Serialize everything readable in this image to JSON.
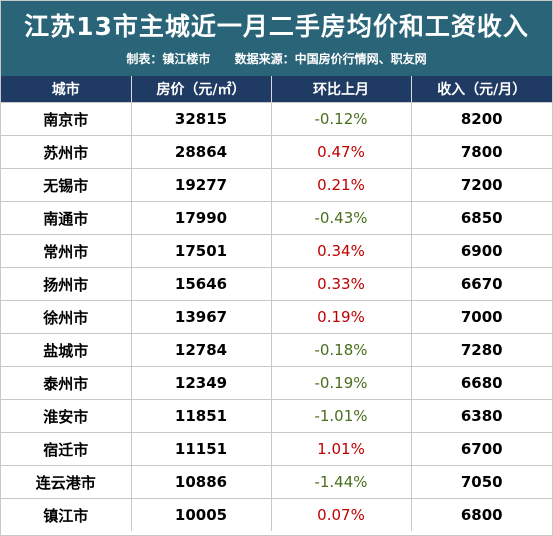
{
  "header": {
    "title": "江苏13市主城近一月二手房均价和工资收入",
    "maker": "制表：镇江楼市",
    "source": "数据来源：中国房价行情网、职友网"
  },
  "colors": {
    "header_bg": "#2a6478",
    "th_bg": "#1f3a63",
    "negative": "#4a6e1e",
    "positive": "#c00000"
  },
  "table": {
    "columns": [
      "城市",
      "房价（元/㎡）",
      "环比上月",
      "收入（元/月）"
    ],
    "rows": [
      {
        "city": "南京市",
        "price": "32815",
        "mom": "-0.12%",
        "income": "8200"
      },
      {
        "city": "苏州市",
        "price": "28864",
        "mom": "0.47%",
        "income": "7800"
      },
      {
        "city": "无锡市",
        "price": "19277",
        "mom": "0.21%",
        "income": "7200"
      },
      {
        "city": "南通市",
        "price": "17990",
        "mom": "-0.43%",
        "income": "6850"
      },
      {
        "city": "常州市",
        "price": "17501",
        "mom": "0.34%",
        "income": "6900"
      },
      {
        "city": "扬州市",
        "price": "15646",
        "mom": "0.33%",
        "income": "6670"
      },
      {
        "city": "徐州市",
        "price": "13967",
        "mom": "0.19%",
        "income": "7000"
      },
      {
        "city": "盐城市",
        "price": "12784",
        "mom": "-0.18%",
        "income": "7280"
      },
      {
        "city": "泰州市",
        "price": "12349",
        "mom": "-0.19%",
        "income": "6680"
      },
      {
        "city": "淮安市",
        "price": "11851",
        "mom": "-1.01%",
        "income": "6380"
      },
      {
        "city": "宿迁市",
        "price": "11151",
        "mom": "1.01%",
        "income": "6700"
      },
      {
        "city": "连云港市",
        "price": "10886",
        "mom": "-1.44%",
        "income": "7050"
      },
      {
        "city": "镇江市",
        "price": "10005",
        "mom": "0.07%",
        "income": "6800"
      }
    ]
  }
}
